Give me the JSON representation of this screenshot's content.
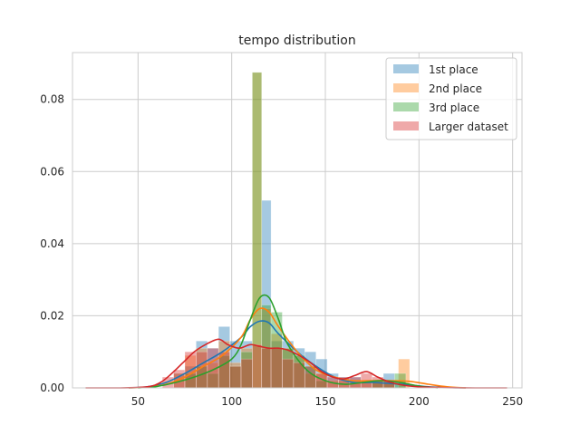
{
  "chart_data": {
    "type": "histogram_kde",
    "title": "tempo distribution",
    "xlabel": "",
    "ylabel": "",
    "xlim": [
      15,
      255
    ],
    "ylim": [
      0,
      0.093
    ],
    "xticks": [
      50,
      100,
      150,
      200,
      250
    ],
    "yticks": [
      0.0,
      0.02,
      0.04,
      0.06,
      0.08
    ],
    "ytick_labels": [
      "0.00",
      "0.02",
      "0.04",
      "0.06",
      "0.08"
    ],
    "grid": true,
    "legend_position": "top-right",
    "series": [
      {
        "name": "1st place",
        "color": "#1f77b4",
        "bins": [
          {
            "x0": 69,
            "x1": 75,
            "y": 0.004
          },
          {
            "x0": 75,
            "x1": 81,
            "y": 0.006
          },
          {
            "x0": 81,
            "x1": 87,
            "y": 0.013
          },
          {
            "x0": 87,
            "x1": 93,
            "y": 0.011
          },
          {
            "x0": 93,
            "x1": 99,
            "y": 0.017
          },
          {
            "x0": 99,
            "x1": 105,
            "y": 0.013
          },
          {
            "x0": 105,
            "x1": 111,
            "y": 0.013
          },
          {
            "x0": 111,
            "x1": 116,
            "y": 0.0
          },
          {
            "x0": 116,
            "x1": 121,
            "y": 0.052
          },
          {
            "x0": 121,
            "x1": 127,
            "y": 0.013
          },
          {
            "x0": 127,
            "x1": 133,
            "y": 0.013
          },
          {
            "x0": 133,
            "x1": 139,
            "y": 0.011
          },
          {
            "x0": 139,
            "x1": 145,
            "y": 0.01
          },
          {
            "x0": 145,
            "x1": 151,
            "y": 0.008
          },
          {
            "x0": 151,
            "x1": 157,
            "y": 0.004
          },
          {
            "x0": 157,
            "x1": 163,
            "y": 0.003
          },
          {
            "x0": 163,
            "x1": 169,
            "y": 0.003
          },
          {
            "x0": 169,
            "x1": 175,
            "y": 0.002
          },
          {
            "x0": 175,
            "x1": 181,
            "y": 0.002
          },
          {
            "x0": 181,
            "x1": 187,
            "y": 0.004
          },
          {
            "x0": 187,
            "x1": 193,
            "y": 0.002
          }
        ],
        "kde": {
          "x": [
            45,
            55,
            65,
            75,
            85,
            95,
            105,
            110,
            115,
            120,
            125,
            135,
            145,
            155,
            165,
            175,
            185,
            195,
            205,
            215,
            225
          ],
          "y": [
            0.0,
            0.0003,
            0.0015,
            0.004,
            0.007,
            0.01,
            0.014,
            0.017,
            0.0185,
            0.018,
            0.015,
            0.01,
            0.006,
            0.003,
            0.0015,
            0.0015,
            0.0012,
            0.0008,
            0.0003,
            0.0001,
            0.0
          ]
        }
      },
      {
        "name": "2nd place",
        "color": "#ff7f0e",
        "bins": [
          {
            "x0": 69,
            "x1": 75,
            "y": 0.004
          },
          {
            "x0": 75,
            "x1": 81,
            "y": 0.009
          },
          {
            "x0": 81,
            "x1": 87,
            "y": 0.011
          },
          {
            "x0": 87,
            "x1": 93,
            "y": 0.007
          },
          {
            "x0": 93,
            "x1": 99,
            "y": 0.013
          },
          {
            "x0": 99,
            "x1": 105,
            "y": 0.007
          },
          {
            "x0": 105,
            "x1": 111,
            "y": 0.011
          },
          {
            "x0": 111,
            "x1": 116,
            "y": 0.0875
          },
          {
            "x0": 116,
            "x1": 121,
            "y": 0.022
          },
          {
            "x0": 121,
            "x1": 127,
            "y": 0.015
          },
          {
            "x0": 127,
            "x1": 133,
            "y": 0.011
          },
          {
            "x0": 133,
            "x1": 139,
            "y": 0.009
          },
          {
            "x0": 139,
            "x1": 145,
            "y": 0.004
          },
          {
            "x0": 145,
            "x1": 151,
            "y": 0.004
          },
          {
            "x0": 151,
            "x1": 157,
            "y": 0.002
          },
          {
            "x0": 157,
            "x1": 163,
            "y": 0.002
          },
          {
            "x0": 163,
            "x1": 169,
            "y": 0.002
          },
          {
            "x0": 169,
            "x1": 175,
            "y": 0.002
          },
          {
            "x0": 175,
            "x1": 181,
            "y": 0.002
          },
          {
            "x0": 181,
            "x1": 187,
            "y": 0.002
          },
          {
            "x0": 189,
            "x1": 195,
            "y": 0.008
          }
        ],
        "kde": {
          "x": [
            45,
            55,
            65,
            75,
            85,
            95,
            105,
            110,
            115,
            120,
            125,
            135,
            145,
            155,
            165,
            175,
            185,
            195,
            205,
            215,
            225
          ],
          "y": [
            0.0,
            0.0002,
            0.001,
            0.003,
            0.006,
            0.009,
            0.014,
            0.019,
            0.022,
            0.021,
            0.017,
            0.01,
            0.005,
            0.003,
            0.002,
            0.002,
            0.002,
            0.0018,
            0.001,
            0.0003,
            0.0
          ]
        }
      },
      {
        "name": "3rd place",
        "color": "#2ca02c",
        "bins": [
          {
            "x0": 75,
            "x1": 81,
            "y": 0.004
          },
          {
            "x0": 81,
            "x1": 87,
            "y": 0.006
          },
          {
            "x0": 87,
            "x1": 93,
            "y": 0.004
          },
          {
            "x0": 93,
            "x1": 99,
            "y": 0.009
          },
          {
            "x0": 99,
            "x1": 105,
            "y": 0.006
          },
          {
            "x0": 105,
            "x1": 111,
            "y": 0.01
          },
          {
            "x0": 111,
            "x1": 116,
            "y": 0.0875
          },
          {
            "x0": 116,
            "x1": 121,
            "y": 0.023
          },
          {
            "x0": 121,
            "x1": 127,
            "y": 0.021
          },
          {
            "x0": 127,
            "x1": 133,
            "y": 0.011
          },
          {
            "x0": 133,
            "x1": 139,
            "y": 0.009
          },
          {
            "x0": 139,
            "x1": 145,
            "y": 0.006
          },
          {
            "x0": 145,
            "x1": 151,
            "y": 0.002
          },
          {
            "x0": 175,
            "x1": 181,
            "y": 0.002
          },
          {
            "x0": 181,
            "x1": 187,
            "y": 0.002
          },
          {
            "x0": 187,
            "x1": 193,
            "y": 0.004
          }
        ],
        "kde": {
          "x": [
            50,
            60,
            70,
            80,
            90,
            100,
            105,
            110,
            115,
            120,
            125,
            130,
            140,
            150,
            160,
            170,
            180,
            190,
            200,
            210
          ],
          "y": [
            0.0,
            0.0004,
            0.0015,
            0.003,
            0.005,
            0.008,
            0.012,
            0.019,
            0.025,
            0.025,
            0.019,
            0.012,
            0.005,
            0.002,
            0.001,
            0.0015,
            0.002,
            0.0015,
            0.0005,
            0.0
          ]
        }
      },
      {
        "name": "Larger dataset",
        "color": "#d62728",
        "bins": [
          {
            "x0": 63,
            "x1": 69,
            "y": 0.003
          },
          {
            "x0": 69,
            "x1": 75,
            "y": 0.005
          },
          {
            "x0": 75,
            "x1": 81,
            "y": 0.01
          },
          {
            "x0": 81,
            "x1": 87,
            "y": 0.01
          },
          {
            "x0": 87,
            "x1": 93,
            "y": 0.011
          },
          {
            "x0": 93,
            "x1": 99,
            "y": 0.01
          },
          {
            "x0": 99,
            "x1": 105,
            "y": 0.006
          },
          {
            "x0": 105,
            "x1": 111,
            "y": 0.008
          },
          {
            "x0": 111,
            "x1": 116,
            "y": 0.012
          },
          {
            "x0": 116,
            "x1": 121,
            "y": 0.011
          },
          {
            "x0": 121,
            "x1": 127,
            "y": 0.011
          },
          {
            "x0": 127,
            "x1": 133,
            "y": 0.008
          },
          {
            "x0": 133,
            "x1": 139,
            "y": 0.007
          },
          {
            "x0": 139,
            "x1": 145,
            "y": 0.006
          },
          {
            "x0": 145,
            "x1": 151,
            "y": 0.004
          },
          {
            "x0": 151,
            "x1": 157,
            "y": 0.003
          },
          {
            "x0": 157,
            "x1": 163,
            "y": 0.003
          },
          {
            "x0": 163,
            "x1": 169,
            "y": 0.003
          },
          {
            "x0": 169,
            "x1": 175,
            "y": 0.004
          },
          {
            "x0": 175,
            "x1": 181,
            "y": 0.003
          },
          {
            "x0": 181,
            "x1": 187,
            "y": 0.002
          }
        ],
        "kde": {
          "x": [
            22,
            40,
            55,
            62,
            68,
            74,
            80,
            86,
            93,
            98,
            104,
            110,
            115,
            120,
            125,
            130,
            136,
            142,
            148,
            154,
            160,
            166,
            172,
            178,
            185,
            195,
            210,
            230,
            247
          ],
          "y": [
            0.0,
            0.0,
            0.0003,
            0.0015,
            0.004,
            0.007,
            0.01,
            0.012,
            0.0135,
            0.012,
            0.011,
            0.012,
            0.0115,
            0.011,
            0.011,
            0.0105,
            0.009,
            0.007,
            0.0045,
            0.003,
            0.0025,
            0.0035,
            0.0045,
            0.003,
            0.0015,
            0.0005,
            0.0001,
            0.0,
            0.0
          ]
        }
      }
    ]
  }
}
